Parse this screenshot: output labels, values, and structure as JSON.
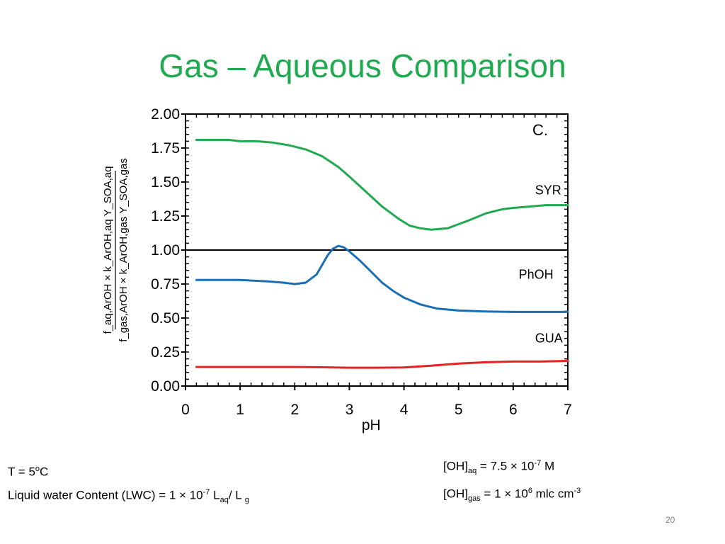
{
  "slide": {
    "title": "Gas – Aqueous Comparison",
    "number": "20"
  },
  "notes": {
    "temperature": {
      "prefix": "T = 5",
      "sup": "o",
      "suffix": "C"
    },
    "lwc": {
      "prefix": "Liquid water Content (LWC) = 1 × 10",
      "exp": "-7",
      "l": " L",
      "sub_aq": "aq",
      "sep": "/ L ",
      "sub_g": "g"
    },
    "oh_aq": {
      "prefix": "[OH]",
      "sub": "aq",
      "mid": " = 7.5 × 10",
      "exp": "-7",
      "unit": " M"
    },
    "oh_gas": {
      "prefix": "[OH]",
      "sub": "gas",
      "mid": " = 1 × 10",
      "exp": "6",
      "unit": " mlc cm",
      "unit_exp": "-3"
    }
  },
  "chart_data": {
    "type": "line",
    "panel_label": "C.",
    "xlabel": "pH",
    "ylabel": {
      "numerator": "f_aq,ArOH × k_ArOH,aq Y_SOA,aq",
      "denominator": "f_gas,ArOH × k_ArOH,gas Y_SOA,gas"
    },
    "xlim": [
      0,
      7
    ],
    "ylim": [
      0,
      2
    ],
    "xticks": [
      "0",
      "1",
      "2",
      "3",
      "4",
      "5",
      "6",
      "7"
    ],
    "yticks": [
      "0.00",
      "0.25",
      "0.50",
      "0.75",
      "1.00",
      "1.25",
      "1.50",
      "1.75",
      "2.00"
    ],
    "reference_line": {
      "y": 1.0,
      "color": "#000000"
    },
    "series": [
      {
        "name": "SYR",
        "color": "#1faa4f",
        "x": [
          0.2,
          0.5,
          0.8,
          1.0,
          1.3,
          1.6,
          1.9,
          2.2,
          2.5,
          2.8,
          3.0,
          3.3,
          3.6,
          3.9,
          4.1,
          4.3,
          4.5,
          4.8,
          5.0,
          5.2,
          5.5,
          5.8,
          6.0,
          6.3,
          6.6,
          7.0
        ],
        "values": [
          1.81,
          1.81,
          1.81,
          1.8,
          1.8,
          1.79,
          1.77,
          1.74,
          1.69,
          1.61,
          1.54,
          1.43,
          1.32,
          1.23,
          1.18,
          1.16,
          1.15,
          1.16,
          1.19,
          1.22,
          1.27,
          1.3,
          1.31,
          1.32,
          1.33,
          1.33
        ]
      },
      {
        "name": "PhOH",
        "color": "#1a6eb4",
        "x": [
          0.2,
          0.5,
          1.0,
          1.5,
          1.8,
          2.0,
          2.2,
          2.4,
          2.5,
          2.6,
          2.7,
          2.8,
          2.9,
          3.0,
          3.2,
          3.4,
          3.6,
          3.8,
          4.0,
          4.3,
          4.6,
          5.0,
          5.5,
          6.0,
          7.0
        ],
        "values": [
          0.78,
          0.78,
          0.78,
          0.77,
          0.76,
          0.75,
          0.76,
          0.82,
          0.89,
          0.96,
          1.01,
          1.03,
          1.02,
          0.99,
          0.92,
          0.84,
          0.76,
          0.7,
          0.65,
          0.6,
          0.57,
          0.555,
          0.548,
          0.545,
          0.545
        ]
      },
      {
        "name": "GUA",
        "color": "#e52321",
        "x": [
          0.2,
          1.0,
          2.0,
          2.5,
          3.0,
          3.5,
          4.0,
          4.5,
          5.0,
          5.5,
          6.0,
          6.5,
          7.0
        ],
        "values": [
          0.14,
          0.14,
          0.14,
          0.138,
          0.135,
          0.135,
          0.137,
          0.15,
          0.165,
          0.175,
          0.18,
          0.18,
          0.185
        ]
      }
    ],
    "series_labels": [
      {
        "text": "SYR",
        "x": 6.4,
        "y": 1.41
      },
      {
        "text": "PhOH",
        "x": 6.1,
        "y": 0.79
      },
      {
        "text": "GUA",
        "x": 6.4,
        "y": 0.32
      }
    ]
  }
}
